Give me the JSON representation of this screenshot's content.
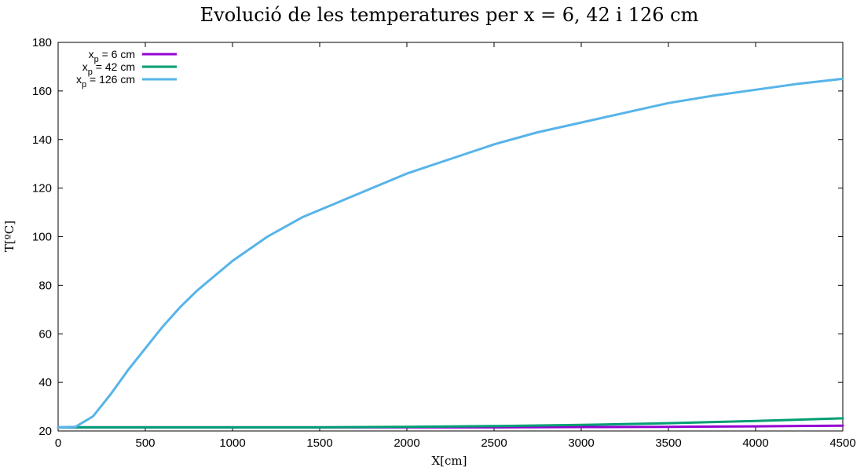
{
  "chart_data": {
    "type": "line",
    "title": "Evolució de les temperatures per x = 6, 42 i 126 cm",
    "xlabel": "X[cm]",
    "ylabel": "T[ºC]",
    "xlim": [
      0,
      4500
    ],
    "ylim": [
      20,
      180
    ],
    "xticks": [
      0,
      500,
      1000,
      1500,
      2000,
      2500,
      3000,
      3500,
      4000,
      4500
    ],
    "yticks": [
      20,
      40,
      60,
      80,
      100,
      120,
      140,
      160,
      180
    ],
    "grid": false,
    "legend_position": "top-left",
    "series": [
      {
        "name": "x_p = 6 cm",
        "legend_main": "x",
        "legend_sub": "p",
        "legend_rest": " = 6 cm",
        "color": "#9400d3",
        "x": [
          0,
          500,
          1000,
          1500,
          2000,
          2500,
          3000,
          3500,
          4000,
          4500
        ],
        "y": [
          21.5,
          21.5,
          21.5,
          21.5,
          21.5,
          21.5,
          21.6,
          21.7,
          21.9,
          22.2
        ]
      },
      {
        "name": "x_p = 42 cm",
        "legend_main": "x",
        "legend_sub": "p",
        "legend_rest": " = 42 cm",
        "color": "#009e73",
        "x": [
          0,
          500,
          1000,
          1500,
          2000,
          2500,
          3000,
          3500,
          4000,
          4500
        ],
        "y": [
          21.5,
          21.5,
          21.5,
          21.5,
          21.7,
          22.0,
          22.5,
          23.2,
          24.1,
          25.2
        ]
      },
      {
        "name": "x_p = 126 cm",
        "legend_main": "x",
        "legend_sub": "p",
        "legend_rest": " = 126 cm",
        "color": "#56b4e9",
        "x": [
          0,
          100,
          200,
          300,
          400,
          500,
          600,
          700,
          800,
          900,
          1000,
          1200,
          1400,
          1600,
          1800,
          2000,
          2250,
          2500,
          2750,
          3000,
          3250,
          3500,
          3750,
          4000,
          4250,
          4500
        ],
        "y": [
          21.5,
          21.7,
          26,
          35,
          45,
          54,
          63,
          71,
          78,
          84,
          90,
          100,
          108,
          114,
          120,
          126,
          132,
          138,
          143,
          147,
          151,
          155,
          158,
          160.5,
          163,
          165
        ]
      }
    ]
  }
}
